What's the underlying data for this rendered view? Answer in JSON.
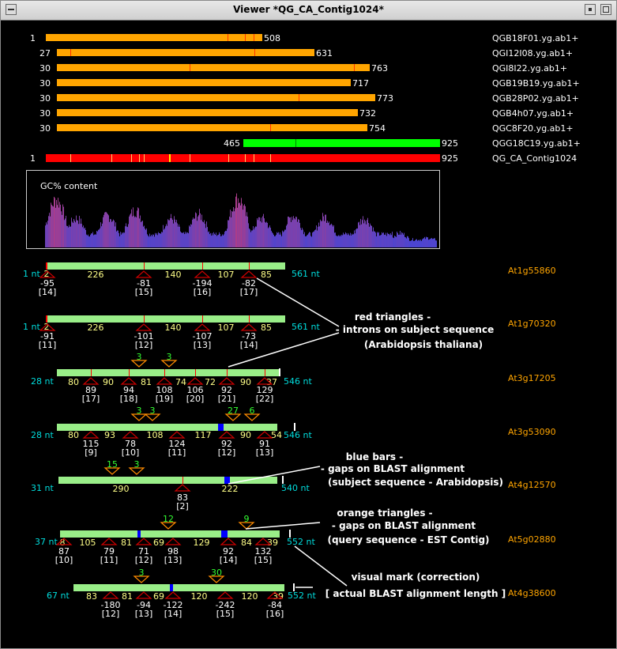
{
  "window": {
    "title": "Viewer *QG_CA_Contig1024*"
  },
  "colors": {
    "est": "#ffa500",
    "contig": "#ff0000",
    "est_green": "#00ff00",
    "match_bar": "#99ee88",
    "gap_bar": "#0000ff",
    "intron_triangle": "#cc0000",
    "query_gap_triangle": "#ff8c00",
    "hit_label": "#ffa500",
    "nt_label": "#00dddd",
    "gc_label": "#ffffff"
  },
  "reads": [
    {
      "start": "1",
      "end": "508",
      "name": "QGB18F01.yg.ab1+"
    },
    {
      "start": "27",
      "end": "631",
      "name": "QGI12I08.yg.ab1+"
    },
    {
      "start": "30",
      "end": "763",
      "name": "QGI8I22.yg.ab1+"
    },
    {
      "start": "30",
      "end": "717",
      "name": "QGB19B19.yg.ab1+"
    },
    {
      "start": "30",
      "end": "773",
      "name": "QGB28P02.yg.ab1+"
    },
    {
      "start": "30",
      "end": "732",
      "name": "QGB4h07.yg.ab1+"
    },
    {
      "start": "30",
      "end": "754",
      "name": "QGC8F20.yg.ab1+"
    },
    {
      "start": "465",
      "end": "925",
      "name": "QGG18C19.yg.ab1+"
    },
    {
      "start": "1",
      "end": "925",
      "name": "QG_CA_Contig1024"
    }
  ],
  "gc_panel": {
    "label": "GC% content"
  },
  "hits": [
    {
      "name": "At1g55860",
      "start": "1 nt",
      "end": "561 nt",
      "segments": [
        "226",
        "140",
        "107",
        "85"
      ],
      "introns": [
        {
          "pos": "-95",
          "idx": "[14]"
        },
        {
          "pos": "-81",
          "idx": "[15]"
        },
        {
          "pos": "-194",
          "idx": "[16]"
        },
        {
          "pos": "-82",
          "idx": "[17]"
        }
      ],
      "lead": "2",
      "gaps_query": []
    },
    {
      "name": "At1g70320",
      "start": "1 nt",
      "end": "561 nt",
      "segments": [
        "226",
        "140",
        "107",
        "85"
      ],
      "introns": [
        {
          "pos": "-91",
          "idx": "[11]"
        },
        {
          "pos": "-101",
          "idx": "[12]"
        },
        {
          "pos": "-107",
          "idx": "[13]"
        },
        {
          "pos": "-73",
          "idx": "[14]"
        }
      ],
      "lead": "2",
      "gaps_query": []
    },
    {
      "name": "At3g17205",
      "start": "28 nt",
      "end": "546 nt",
      "segments": [
        "80",
        "90",
        "81",
        "74",
        "106",
        "72",
        "90",
        "37"
      ],
      "introns": [
        {
          "pos": "89",
          "idx": "[17]"
        },
        {
          "pos": "94",
          "idx": "[18]"
        },
        {
          "pos": "108",
          "idx": "[19]"
        },
        {
          "pos": "106",
          "idx": "[20]"
        },
        {
          "pos": "92",
          "idx": "[21]"
        },
        {
          "pos": "129",
          "idx": "[22]"
        }
      ],
      "gaps_query": [
        "3",
        "3"
      ]
    },
    {
      "name": "At3g53090",
      "start": "28 nt",
      "end": "546 nt",
      "segments": [
        "80",
        "93",
        "108",
        "117",
        "90",
        "54"
      ],
      "introns": [
        {
          "pos": "115",
          "idx": "[9]"
        },
        {
          "pos": "78",
          "idx": "[10]"
        },
        {
          "pos": "124",
          "idx": "[11]"
        },
        {
          "pos": "92",
          "idx": "[12]"
        },
        {
          "pos": "91",
          "idx": "[13]"
        }
      ],
      "gaps_query": [
        "3",
        "3",
        "27",
        "6"
      ]
    },
    {
      "name": "At4g12570",
      "start": "31 nt",
      "end": "540 nt",
      "segments": [
        "290",
        "222"
      ],
      "introns": [
        {
          "pos": "83",
          "idx": "[2]"
        }
      ],
      "gaps_query": [
        "15",
        "3"
      ]
    },
    {
      "name": "At5g02880",
      "start": "37 nt",
      "end": "552 nt",
      "segments": [
        "8",
        "105",
        "81",
        "69",
        "129",
        "84",
        "39"
      ],
      "introns": [
        {
          "pos": "87",
          "idx": "[10]"
        },
        {
          "pos": "79",
          "idx": "[11]"
        },
        {
          "pos": "71",
          "idx": "[12]"
        },
        {
          "pos": "98",
          "idx": "[13]"
        },
        {
          "pos": "92",
          "idx": "[14]"
        },
        {
          "pos": "132",
          "idx": "[15]"
        }
      ],
      "gaps_query": [
        "12",
        "9"
      ]
    },
    {
      "name": "At4g38600",
      "start": "67 nt",
      "end": "552 nt",
      "segments": [
        "83",
        "81",
        "69",
        "120",
        "120",
        "39"
      ],
      "introns": [
        {
          "pos": "-180",
          "idx": "[12]"
        },
        {
          "pos": "-94",
          "idx": "[13]"
        },
        {
          "pos": "-122",
          "idx": "[14]"
        },
        {
          "pos": "-242",
          "idx": "[15]"
        },
        {
          "pos": "-84",
          "idx": "[16]"
        }
      ],
      "gaps_query": [
        "3",
        "30"
      ]
    }
  ],
  "annotations": {
    "red": {
      "line1": "red triangles -",
      "line2": "- introns on subject sequence",
      "line3": "(Arabidopsis thaliana)"
    },
    "blue": {
      "line1": "blue bars -",
      "line2": "- gaps on BLAST alignment",
      "line3": "(subject sequence - Arabidopsis)"
    },
    "orange": {
      "line1": "orange triangles -",
      "line2": "- gaps on BLAST alignment",
      "line3": "(query sequence - EST Contig)"
    },
    "mark": {
      "line1": "visual mark (correction)",
      "line2": "[ actual BLAST alignment length ]"
    }
  }
}
